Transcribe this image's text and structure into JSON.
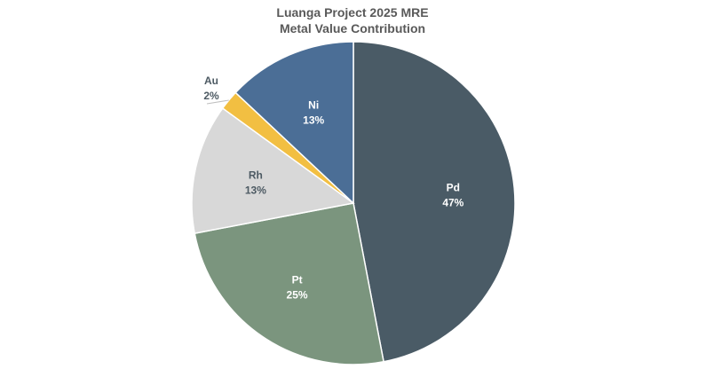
{
  "chart_data": {
    "type": "pie",
    "title": "Luanga Project 2025 MRE",
    "subtitle": "Metal Value Contribution",
    "categories": [
      "Pd",
      "Pt",
      "Rh",
      "Au",
      "Ni"
    ],
    "values": [
      47,
      25,
      13,
      2,
      13
    ],
    "unit": "%",
    "colors": [
      "#4a5b66",
      "#7b957e",
      "#d8d8d8",
      "#f2bf42",
      "#4b6e96"
    ],
    "start_angle": "12 o'clock",
    "direction": "clockwise",
    "legend": "none",
    "data_labels": [
      {
        "name": "Pd",
        "value": "47%"
      },
      {
        "name": "Pt",
        "value": "25%"
      },
      {
        "name": "Rh",
        "value": "13%"
      },
      {
        "name": "Au",
        "value": "2%"
      },
      {
        "name": "Ni",
        "value": "13%"
      }
    ]
  }
}
